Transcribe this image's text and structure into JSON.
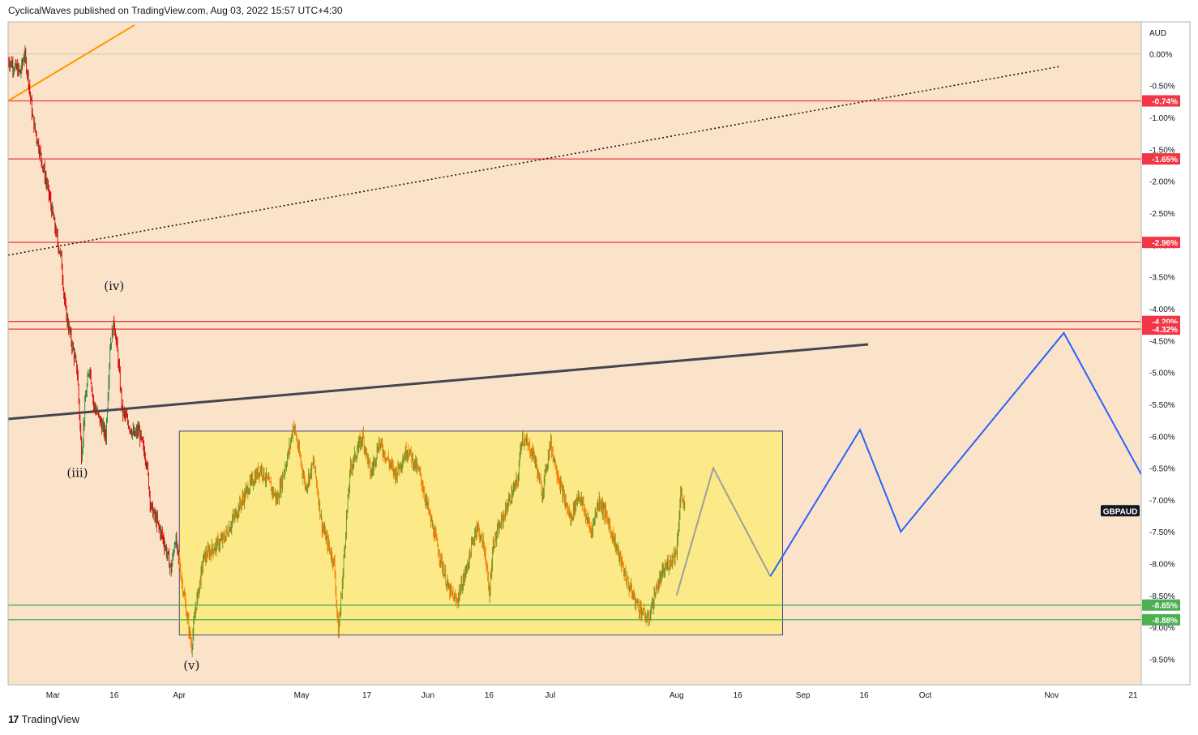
{
  "header": {
    "text": "CyclicalWaves published on TradingView.com, Aug 03, 2022 15:57 UTC+4:30"
  },
  "footer": {
    "logo": "17",
    "brand": "TradingView"
  },
  "colors": {
    "background": "#fae3c9",
    "red_line": "#f23645",
    "green_line": "#4caf50",
    "box_fill": "#fce988",
    "projection_blue": "#2962ff",
    "projection_grey": "#9e9e9e",
    "orange_trend": "#ff9800",
    "dark_trend": "#434651",
    "candle_up": "#4caf50",
    "candle_down": "#f23645"
  },
  "chart_data": {
    "type": "line",
    "symbol": "GBPAUD",
    "currency": "AUD",
    "y_unit": "%",
    "ylim": [
      -9.9,
      0.5
    ],
    "y_ticks": [
      "0.00%",
      "-0.50%",
      "-1.00%",
      "-1.50%",
      "-2.00%",
      "-2.50%",
      "-3.00%",
      "-3.50%",
      "-4.00%",
      "-4.50%",
      "-5.00%",
      "-5.50%",
      "-6.00%",
      "-6.50%",
      "-7.00%",
      "-7.50%",
      "-8.00%",
      "-8.50%",
      "-9.00%",
      "-9.50%"
    ],
    "y_tick_values": [
      0,
      -0.5,
      -1,
      -1.5,
      -2,
      -2.5,
      -3,
      -3.5,
      -4,
      -4.5,
      -5,
      -5.5,
      -6,
      -6.5,
      -7,
      -7.5,
      -8,
      -8.5,
      -9,
      -9.5
    ],
    "x_ticks": [
      {
        "label": "Mar",
        "date": "2022-03-01"
      },
      {
        "label": "16",
        "date": "2022-03-16"
      },
      {
        "label": "Apr",
        "date": "2022-04-01"
      },
      {
        "label": "May",
        "date": "2022-05-01"
      },
      {
        "label": "17",
        "date": "2022-05-17"
      },
      {
        "label": "Jun",
        "date": "2022-06-01"
      },
      {
        "label": "16",
        "date": "2022-06-16"
      },
      {
        "label": "Jul",
        "date": "2022-07-01"
      },
      {
        "label": "Aug",
        "date": "2022-08-01"
      },
      {
        "label": "16",
        "date": "2022-08-16"
      },
      {
        "label": "Sep",
        "date": "2022-09-01"
      },
      {
        "label": "16",
        "date": "2022-09-16"
      },
      {
        "label": "Oct",
        "date": "2022-10-01"
      },
      {
        "label": "Nov",
        "date": "2022-11-01"
      },
      {
        "label": "21",
        "date": "2022-11-21"
      }
    ],
    "xlim": [
      "2022-02-18",
      "2022-11-23"
    ],
    "price_path": [
      {
        "date": "2022-02-18",
        "value": -0.1
      },
      {
        "date": "2022-02-21",
        "value": -0.3
      },
      {
        "date": "2022-02-22",
        "value": 0.0
      },
      {
        "date": "2022-02-23",
        "value": -0.4
      },
      {
        "date": "2022-02-24",
        "value": -1.0
      },
      {
        "date": "2022-02-25",
        "value": -1.3
      },
      {
        "date": "2022-02-28",
        "value": -2.2
      },
      {
        "date": "2022-03-02",
        "value": -2.9
      },
      {
        "date": "2022-03-03",
        "value": -3.2
      },
      {
        "date": "2022-03-04",
        "value": -4.0
      },
      {
        "date": "2022-03-07",
        "value": -5.0
      },
      {
        "date": "2022-03-08",
        "value": -6.3
      },
      {
        "date": "2022-03-09",
        "value": -5.4
      },
      {
        "date": "2022-03-10",
        "value": -4.9
      },
      {
        "date": "2022-03-11",
        "value": -5.5
      },
      {
        "date": "2022-03-14",
        "value": -6.0
      },
      {
        "date": "2022-03-15",
        "value": -4.6
      },
      {
        "date": "2022-03-16",
        "value": -4.2
      },
      {
        "date": "2022-03-17",
        "value": -4.8
      },
      {
        "date": "2022-03-18",
        "value": -5.6
      },
      {
        "date": "2022-03-21",
        "value": -6.0
      },
      {
        "date": "2022-03-22",
        "value": -5.9
      },
      {
        "date": "2022-03-24",
        "value": -6.4
      },
      {
        "date": "2022-03-25",
        "value": -7.1
      },
      {
        "date": "2022-03-28",
        "value": -7.6
      },
      {
        "date": "2022-03-30",
        "value": -8.1
      },
      {
        "date": "2022-03-31",
        "value": -7.6
      },
      {
        "date": "2022-04-01",
        "value": -8.0
      },
      {
        "date": "2022-04-04",
        "value": -9.3
      },
      {
        "date": "2022-04-05",
        "value": -8.7
      },
      {
        "date": "2022-04-07",
        "value": -7.9
      },
      {
        "date": "2022-04-12",
        "value": -7.6
      },
      {
        "date": "2022-04-15",
        "value": -7.2
      },
      {
        "date": "2022-04-18",
        "value": -6.8
      },
      {
        "date": "2022-04-21",
        "value": -6.5
      },
      {
        "date": "2022-04-25",
        "value": -7.0
      },
      {
        "date": "2022-04-28",
        "value": -6.2
      },
      {
        "date": "2022-04-29",
        "value": -5.8
      },
      {
        "date": "2022-05-02",
        "value": -6.8
      },
      {
        "date": "2022-05-04",
        "value": -6.4
      },
      {
        "date": "2022-05-06",
        "value": -7.4
      },
      {
        "date": "2022-05-09",
        "value": -8.0
      },
      {
        "date": "2022-05-10",
        "value": -9.1
      },
      {
        "date": "2022-05-11",
        "value": -8.3
      },
      {
        "date": "2022-05-12",
        "value": -7.3
      },
      {
        "date": "2022-05-13",
        "value": -6.5
      },
      {
        "date": "2022-05-16",
        "value": -6.0
      },
      {
        "date": "2022-05-18",
        "value": -6.6
      },
      {
        "date": "2022-05-20",
        "value": -6.1
      },
      {
        "date": "2022-05-24",
        "value": -6.6
      },
      {
        "date": "2022-05-27",
        "value": -6.2
      },
      {
        "date": "2022-05-30",
        "value": -6.6
      },
      {
        "date": "2022-06-02",
        "value": -7.4
      },
      {
        "date": "2022-06-06",
        "value": -8.4
      },
      {
        "date": "2022-06-08",
        "value": -8.6
      },
      {
        "date": "2022-06-10",
        "value": -8.2
      },
      {
        "date": "2022-06-13",
        "value": -7.4
      },
      {
        "date": "2022-06-15",
        "value": -7.8
      },
      {
        "date": "2022-06-16",
        "value": -8.5
      },
      {
        "date": "2022-06-17",
        "value": -7.7
      },
      {
        "date": "2022-06-21",
        "value": -7.0
      },
      {
        "date": "2022-06-23",
        "value": -6.7
      },
      {
        "date": "2022-06-24",
        "value": -6.0
      },
      {
        "date": "2022-06-27",
        "value": -6.3
      },
      {
        "date": "2022-06-29",
        "value": -6.9
      },
      {
        "date": "2022-07-01",
        "value": -6.1
      },
      {
        "date": "2022-07-04",
        "value": -6.9
      },
      {
        "date": "2022-07-06",
        "value": -7.3
      },
      {
        "date": "2022-07-08",
        "value": -6.9
      },
      {
        "date": "2022-07-11",
        "value": -7.5
      },
      {
        "date": "2022-07-13",
        "value": -7.0
      },
      {
        "date": "2022-07-15",
        "value": -7.3
      },
      {
        "date": "2022-07-18",
        "value": -7.9
      },
      {
        "date": "2022-07-20",
        "value": -8.3
      },
      {
        "date": "2022-07-22",
        "value": -8.6
      },
      {
        "date": "2022-07-25",
        "value": -8.9
      },
      {
        "date": "2022-07-27",
        "value": -8.4
      },
      {
        "date": "2022-07-29",
        "value": -8.1
      },
      {
        "date": "2022-08-01",
        "value": -7.8
      },
      {
        "date": "2022-08-02",
        "value": -6.9
      },
      {
        "date": "2022-08-03",
        "value": -7.1
      }
    ],
    "horizontal_lines": [
      {
        "label": "-0.74%",
        "value": -0.74,
        "color": "red"
      },
      {
        "label": "-1.65%",
        "value": -1.65,
        "color": "red"
      },
      {
        "label": "-2.96%",
        "value": -2.96,
        "color": "red"
      },
      {
        "label": "-4.20%",
        "value": -4.2,
        "color": "red"
      },
      {
        "label": "-4.32%",
        "value": -4.32,
        "color": "red"
      },
      {
        "label": "-8.65%",
        "value": -8.65,
        "color": "green"
      },
      {
        "label": "-8.88%",
        "value": -8.88,
        "color": "green"
      }
    ],
    "range_box": {
      "x_start": "2022-04-01",
      "x_end": "2022-08-27",
      "y_top": -5.92,
      "y_bottom": -9.12
    },
    "trendlines": [
      {
        "name": "orange",
        "points": [
          {
            "date": "2022-02-18",
            "value": -0.74
          },
          {
            "date": "2022-03-21",
            "value": 0.45
          }
        ]
      },
      {
        "name": "dotted",
        "points": [
          {
            "date": "2022-02-18",
            "value": -3.16
          },
          {
            "date": "2022-11-03",
            "value": -0.2
          }
        ]
      },
      {
        "name": "dark",
        "points": [
          {
            "date": "2022-02-18",
            "value": -5.73
          },
          {
            "date": "2022-09-17",
            "value": -4.56
          }
        ]
      }
    ],
    "projection_grey": [
      {
        "date": "2022-08-01",
        "value": -8.5
      },
      {
        "date": "2022-08-10",
        "value": -6.5
      },
      {
        "date": "2022-08-24",
        "value": -8.2
      }
    ],
    "projection_blue": [
      {
        "date": "2022-08-24",
        "value": -8.2
      },
      {
        "date": "2022-09-15",
        "value": -5.9
      },
      {
        "date": "2022-09-25",
        "value": -7.5
      },
      {
        "date": "2022-11-04",
        "value": -4.38
      },
      {
        "date": "2022-11-23",
        "value": -6.6
      }
    ],
    "wave_labels": [
      {
        "text": "(iv)",
        "date": "2022-03-16",
        "value": -3.71
      },
      {
        "text": "(iii)",
        "date": "2022-03-07",
        "value": -6.64
      },
      {
        "text": "(v)",
        "date": "2022-04-04",
        "value": -9.66
      }
    ],
    "symbol_tag": {
      "text": "GBPAUD",
      "value": -7.17
    }
  }
}
